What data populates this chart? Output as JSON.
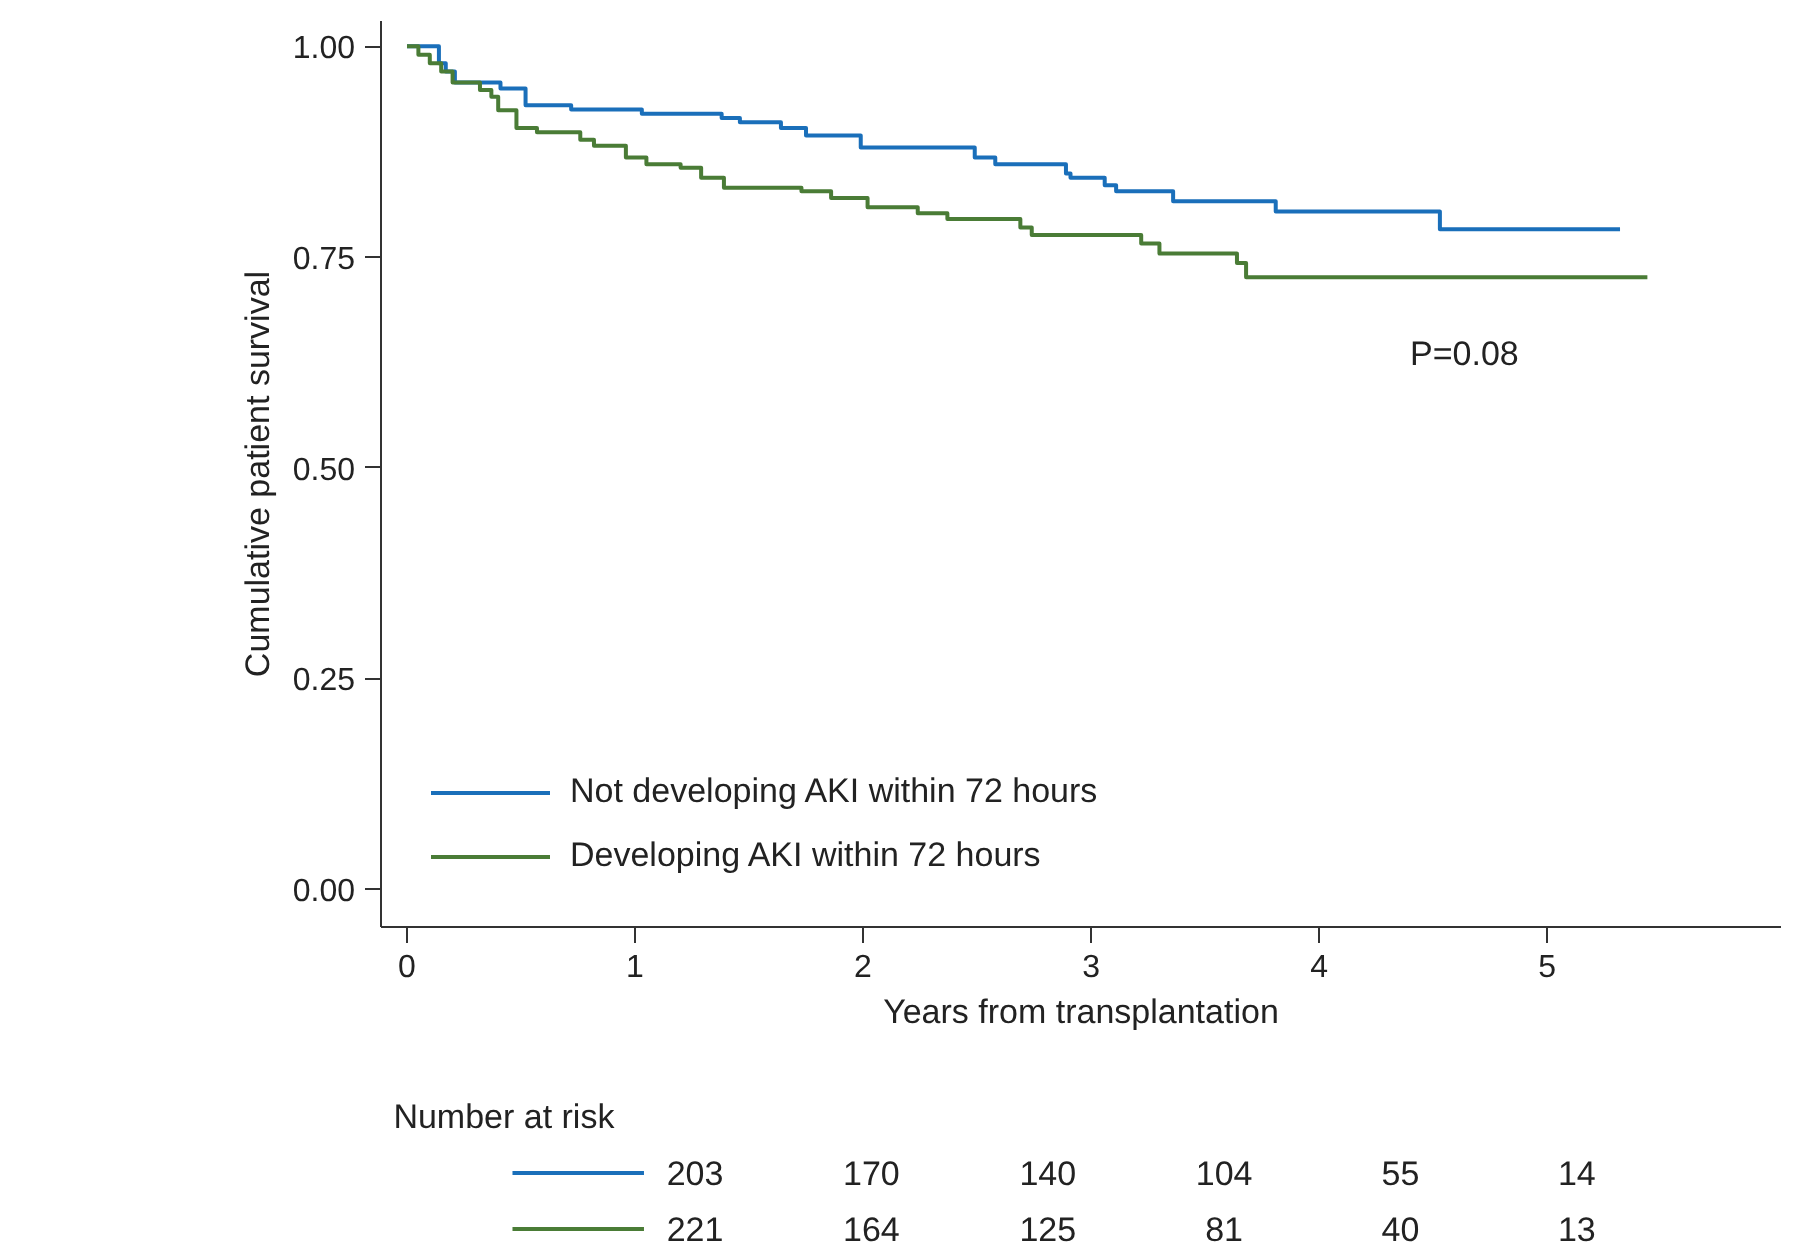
{
  "chart_data": {
    "type": "step",
    "xlabel": "Years from transplantation",
    "ylabel": "Cumulative patient survival",
    "xlim": [
      -0.114,
      6.026
    ],
    "ylim": [
      -0.045,
      1.03
    ],
    "xticks": [
      0,
      1,
      2,
      3,
      4,
      5
    ],
    "yticks": [
      {
        "value": 0,
        "label": "0.00"
      },
      {
        "value": 0.25,
        "label": "0.25"
      },
      {
        "value": 0.5,
        "label": "0.50"
      },
      {
        "value": 0.75,
        "label": "0.75"
      },
      {
        "value": 1,
        "label": "1.00"
      }
    ],
    "grid": false,
    "legend": "bottom left",
    "series": [
      {
        "name": "Not developing AKI within 72 hours",
        "color": "#1a6fba",
        "x": [
          0,
          0.14,
          0.17,
          0.21,
          0.41,
          0.52,
          0.72,
          1.03,
          1.38,
          1.46,
          1.64,
          1.75,
          1.99,
          2.49,
          2.58,
          2.89,
          2.91,
          3.06,
          3.11,
          3.36,
          3.81,
          4.53,
          5.32
        ],
        "values": [
          1.0,
          0.98,
          0.97,
          0.957,
          0.95,
          0.93,
          0.925,
          0.92,
          0.915,
          0.91,
          0.903,
          0.894,
          0.88,
          0.868,
          0.86,
          0.849,
          0.844,
          0.835,
          0.828,
          0.816,
          0.804,
          0.783,
          0.783
        ]
      },
      {
        "name": "Developing AKI within 72 hours",
        "color": "#4a7c36",
        "x": [
          0,
          0.05,
          0.1,
          0.15,
          0.2,
          0.32,
          0.37,
          0.4,
          0.48,
          0.57,
          0.76,
          0.82,
          0.96,
          1.05,
          1.2,
          1.29,
          1.39,
          1.73,
          1.86,
          2.02,
          2.24,
          2.37,
          2.69,
          2.74,
          3.22,
          3.3,
          3.64,
          3.68,
          5.44
        ],
        "values": [
          1.0,
          0.99,
          0.98,
          0.97,
          0.957,
          0.948,
          0.94,
          0.924,
          0.903,
          0.898,
          0.889,
          0.882,
          0.868,
          0.86,
          0.856,
          0.844,
          0.832,
          0.828,
          0.82,
          0.809,
          0.802,
          0.795,
          0.785,
          0.776,
          0.766,
          0.754,
          0.743,
          0.726,
          0.726
        ]
      }
    ],
    "annotations": [
      "P=0.08",
      "Number at risk",
      "203 170 140 104 55 14",
      "221 164 125 81 40 13"
    ]
  }
}
